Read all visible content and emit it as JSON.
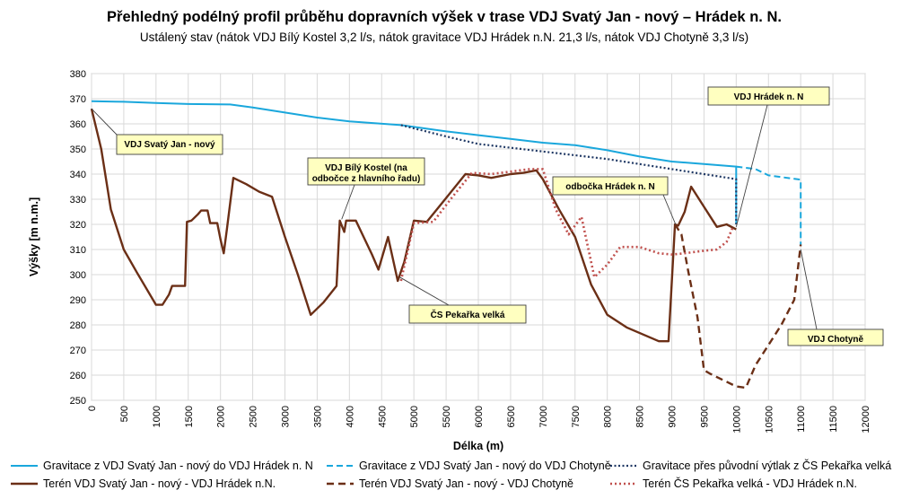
{
  "chart_data": {
    "type": "line",
    "title": "Přehledný podélný profil průběhu dopravních výšek v trase VDJ Svatý Jan - nový – Hrádek n. N.",
    "subtitle": "Ustálený stav (nátok VDJ Bílý Kostel 3,2 l/s, nátok gravitace VDJ Hrádek n.N. 21,3 l/s, nátok VDJ Chotyně 3,3 l/s)",
    "xlabel": "Délka (m)",
    "ylabel": "Výšky [m n.m.]",
    "xlim": [
      0,
      12000
    ],
    "ylim": [
      250,
      380
    ],
    "xticks": [
      0,
      500,
      1000,
      1500,
      2000,
      2500,
      3000,
      3500,
      4000,
      4500,
      5000,
      5500,
      6000,
      6500,
      7000,
      7500,
      8000,
      8500,
      9000,
      9500,
      10000,
      10500,
      11000,
      11500,
      12000
    ],
    "yticks": [
      250,
      260,
      270,
      280,
      290,
      300,
      310,
      320,
      330,
      340,
      350,
      360,
      370,
      380
    ],
    "grid": true,
    "legend_position": "bottom",
    "series": [
      {
        "name": "Gravitace z VDJ Svatý Jan - nový do VDJ Hrádek n. N",
        "color": "#1aa7dc",
        "style": "solid",
        "width": 2,
        "points": [
          [
            0,
            369
          ],
          [
            500,
            368.8
          ],
          [
            1000,
            368.3
          ],
          [
            1500,
            367.9
          ],
          [
            2150,
            367.7
          ],
          [
            2500,
            366.5
          ],
          [
            3000,
            364.5
          ],
          [
            3500,
            362.5
          ],
          [
            4000,
            361
          ],
          [
            4800,
            359.5
          ],
          [
            5500,
            357
          ],
          [
            6000,
            355.5
          ],
          [
            6500,
            354
          ],
          [
            7000,
            352.5
          ],
          [
            7500,
            351.5
          ],
          [
            8000,
            349.5
          ],
          [
            8500,
            347
          ],
          [
            9000,
            345
          ],
          [
            9500,
            344
          ],
          [
            10000,
            343
          ],
          [
            10000,
            320
          ]
        ]
      },
      {
        "name": "Gravitace z VDJ Svatý Jan - nový do VDJ Chotyně",
        "color": "#1aa7dc",
        "style": "dashed",
        "width": 2,
        "points": [
          [
            10000,
            343
          ],
          [
            10300,
            342
          ],
          [
            10500,
            339.5
          ],
          [
            11000,
            337.8
          ],
          [
            11000,
            312
          ]
        ]
      },
      {
        "name": "Gravitace přes původní výtlak z ČS Pekařka velká",
        "color": "#1f3864",
        "style": "dotted",
        "width": 2.2,
        "points": [
          [
            4800,
            359.5
          ],
          [
            5500,
            355
          ],
          [
            6000,
            352
          ],
          [
            6500,
            350.5
          ],
          [
            7000,
            349
          ],
          [
            7500,
            347.5
          ],
          [
            8000,
            346
          ],
          [
            8500,
            344
          ],
          [
            9000,
            342
          ],
          [
            9500,
            340
          ],
          [
            10000,
            338
          ],
          [
            10000,
            320
          ]
        ]
      },
      {
        "name": "Terén VDJ Svatý Jan - nový - VDJ Hrádek n.N.",
        "color": "#6b2f16",
        "style": "solid",
        "width": 2.4,
        "points": [
          [
            0,
            366
          ],
          [
            150,
            350
          ],
          [
            300,
            326
          ],
          [
            500,
            310
          ],
          [
            700,
            301
          ],
          [
            1000,
            288
          ],
          [
            1100,
            288
          ],
          [
            1200,
            292
          ],
          [
            1250,
            295.5
          ],
          [
            1450,
            295.5
          ],
          [
            1480,
            321
          ],
          [
            1550,
            321.5
          ],
          [
            1650,
            324
          ],
          [
            1700,
            325.5
          ],
          [
            1800,
            325.5
          ],
          [
            1840,
            320.5
          ],
          [
            1950,
            320.5
          ],
          [
            2000,
            314
          ],
          [
            2050,
            308.5
          ],
          [
            2100,
            318
          ],
          [
            2200,
            338.5
          ],
          [
            2400,
            336
          ],
          [
            2600,
            333
          ],
          [
            2800,
            331
          ],
          [
            3000,
            315
          ],
          [
            3200,
            300
          ],
          [
            3400,
            284
          ],
          [
            3600,
            289
          ],
          [
            3800,
            295.5
          ],
          [
            3850,
            321.5
          ],
          [
            3920,
            317
          ],
          [
            3950,
            321.5
          ],
          [
            4100,
            321.5
          ],
          [
            4350,
            308
          ],
          [
            4450,
            302
          ],
          [
            4600,
            315
          ],
          [
            4750,
            297.5
          ],
          [
            4850,
            305
          ],
          [
            5000,
            321.5
          ],
          [
            5200,
            321
          ],
          [
            5500,
            330.5
          ],
          [
            5800,
            340
          ],
          [
            6000,
            339.5
          ],
          [
            6200,
            338.5
          ],
          [
            6500,
            340
          ],
          [
            6700,
            340.5
          ],
          [
            6900,
            341.5
          ],
          [
            7000,
            338
          ],
          [
            7250,
            326
          ],
          [
            7500,
            315
          ],
          [
            7750,
            296
          ],
          [
            8000,
            284
          ],
          [
            8300,
            279
          ],
          [
            8800,
            273.5
          ],
          [
            8950,
            273.5
          ],
          [
            9050,
            320
          ],
          [
            9100,
            319.5
          ],
          [
            9200,
            325
          ],
          [
            9300,
            335
          ],
          [
            9500,
            327
          ],
          [
            9700,
            319
          ],
          [
            9850,
            320
          ],
          [
            10000,
            318
          ]
        ]
      },
      {
        "name": "Terén VDJ Svatý Jan - nový - VDJ Chotyně",
        "color": "#6b2f16",
        "style": "dashed",
        "width": 2.4,
        "points": [
          [
            9050,
            320
          ],
          [
            9150,
            316
          ],
          [
            9250,
            302
          ],
          [
            9400,
            283
          ],
          [
            9500,
            262
          ],
          [
            9600,
            260.5
          ],
          [
            9800,
            258
          ],
          [
            10000,
            255.5
          ],
          [
            10150,
            255
          ],
          [
            10300,
            264
          ],
          [
            10500,
            272
          ],
          [
            10700,
            280
          ],
          [
            10900,
            290
          ],
          [
            11000,
            312
          ]
        ]
      },
      {
        "name": "Terén ČS Pekařka velká - VDJ Hrádek n.N.",
        "color": "#c0504d",
        "style": "dotted",
        "width": 2.6,
        "points": [
          [
            4800,
            297.5
          ],
          [
            5000,
            320.5
          ],
          [
            5300,
            321
          ],
          [
            5600,
            331
          ],
          [
            5900,
            340.5
          ],
          [
            6200,
            340
          ],
          [
            6500,
            341
          ],
          [
            6800,
            342
          ],
          [
            7000,
            342
          ],
          [
            7200,
            326
          ],
          [
            7400,
            316
          ],
          [
            7600,
            323
          ],
          [
            7800,
            299
          ],
          [
            8000,
            304
          ],
          [
            8200,
            311
          ],
          [
            8500,
            311
          ],
          [
            8800,
            308.5
          ],
          [
            9000,
            308
          ],
          [
            9200,
            308.5
          ],
          [
            9500,
            309.5
          ],
          [
            9700,
            310
          ],
          [
            9850,
            313
          ],
          [
            9950,
            319
          ]
        ]
      }
    ],
    "annotations": [
      {
        "id": "svaty-jan",
        "lines": [
          "VDJ Svatý Jan - nový"
        ],
        "target": [
          0,
          366
        ]
      },
      {
        "id": "bily-kostel",
        "lines": [
          "VDJ Bílý Kostel (na",
          "odbočce z hlavního řadu)"
        ],
        "target": [
          3880,
          322
        ]
      },
      {
        "id": "hradek",
        "lines": [
          "VDJ Hrádek n. N"
        ],
        "target": [
          10000,
          319
        ]
      },
      {
        "id": "odbocka",
        "lines": [
          "odbočka Hrádek n. N"
        ],
        "target": [
          9060,
          320
        ]
      },
      {
        "id": "pekarka",
        "lines": [
          "ČS Pekařka velká"
        ],
        "target": [
          4780,
          299
        ]
      },
      {
        "id": "chotyne",
        "lines": [
          "VDJ Chotyně"
        ],
        "target": [
          11000,
          310
        ]
      }
    ]
  }
}
